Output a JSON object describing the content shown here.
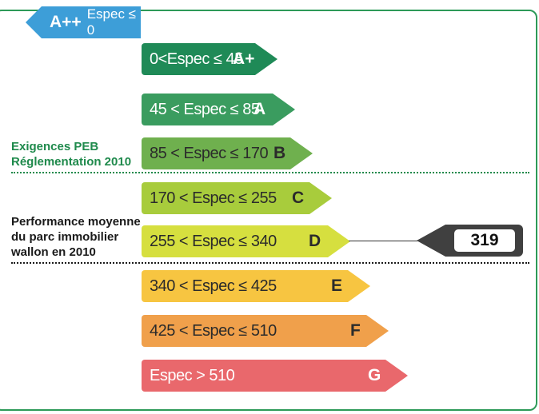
{
  "top_class": {
    "grade": "A++",
    "range": "Espec ≤ 0",
    "color": "#3d9ed8"
  },
  "classes": [
    {
      "range": "0<Espec ≤ 45",
      "grade": "A+",
      "color": "#1f8a57",
      "text_color": "#ffffff"
    },
    {
      "range": "45 < Espec ≤ 85",
      "grade": "A",
      "color": "#3a9c5f",
      "text_color": "#ffffff"
    },
    {
      "range": "85 < Espec ≤ 170",
      "grade": "B",
      "color": "#6fb04e",
      "text_color": "#2b2b2b"
    },
    {
      "range": "170 < Espec ≤ 255",
      "grade": "C",
      "color": "#a8cc3c",
      "text_color": "#2b2b2b"
    },
    {
      "range": "255 < Espec ≤ 340",
      "grade": "D",
      "color": "#d6df3f",
      "text_color": "#2b2b2b"
    },
    {
      "range": "340 < Espec ≤ 425",
      "grade": "E",
      "color": "#f7c541",
      "text_color": "#2b2b2b"
    },
    {
      "range": "425 < Espec ≤ 510",
      "grade": "F",
      "color": "#f0a04b",
      "text_color": "#2b2b2b"
    },
    {
      "range": "Espec > 510",
      "grade": "G",
      "color": "#e9686c",
      "text_color": "#ffffff"
    }
  ],
  "labels": {
    "exigences_line1": "Exigences PEB",
    "exigences_line2": "Réglementation 2010",
    "performance_line1": "Performance moyenne",
    "performance_line2": "du parc immobilier",
    "performance_line3": "wallon en 2010"
  },
  "marker": {
    "value": "319"
  },
  "colors": {
    "frame": "#2d9a58",
    "exigences_text": "#1f8a4c",
    "performance_text": "#1a1a1a"
  }
}
